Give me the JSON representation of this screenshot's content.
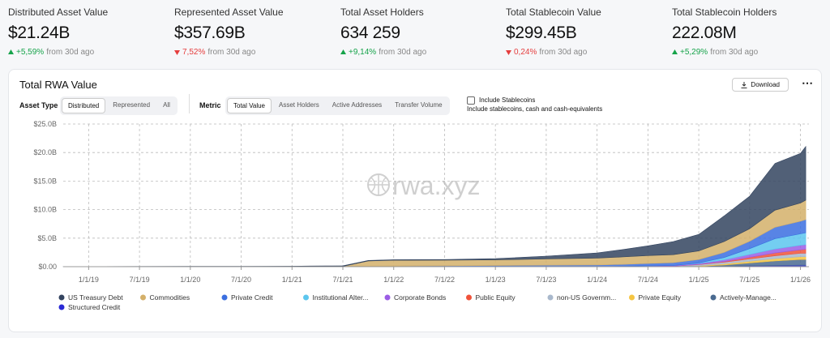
{
  "stats": [
    {
      "label": "Distributed Asset Value",
      "value": "$21.24B",
      "change": "+5,59%",
      "suffix": "from 30d ago"
    },
    {
      "label": "Represented Asset Value",
      "value": "$357.69B",
      "change": "7,52%",
      "suffix": "from 30d ago"
    },
    {
      "label": "Total Asset Holders",
      "value": "634 259",
      "change": "+9,14%",
      "suffix": "from 30d ago"
    },
    {
      "label": "Total Stablecoin Value",
      "value": "$299.45B",
      "change": "0,24%",
      "suffix": "from 30d ago"
    },
    {
      "label": "Total Stablecoin Holders",
      "value": "222.08M",
      "change": "+5,29%",
      "suffix": "from 30d ago"
    }
  ],
  "stat_directions": [
    "up",
    "down",
    "up",
    "down",
    "up"
  ],
  "panel": {
    "title": "Total RWA Value",
    "download": "Download",
    "asset_type_label": "Asset Type",
    "asset_types": [
      "Distributed",
      "Represented",
      "All"
    ],
    "metric_label": "Metric",
    "metrics": [
      "Total Value",
      "Asset Holders",
      "Active Addresses",
      "Transfer Volume"
    ],
    "stablecoins_label": "Include Stablecoins",
    "stablecoins_note": "Include stablecoins, cash and cash-equivalents",
    "watermark": "rwa.xyz"
  },
  "chart_data": {
    "type": "stacked_area",
    "x": [
      "10/1/18",
      "1/1/19",
      "7/1/19",
      "1/1/20",
      "7/1/20",
      "1/1/21",
      "7/1/21",
      "10/1/21",
      "1/1/22",
      "7/1/22",
      "1/1/23",
      "7/1/23",
      "1/1/24",
      "4/1/24",
      "7/1/24",
      "10/1/24",
      "1/1/25",
      "4/1/25",
      "7/1/25",
      "10/1/25",
      "1/1/26",
      "1/20/26"
    ],
    "xlim": [
      "10/1/18",
      "2/1/26"
    ],
    "xticks": [
      "1/1/19",
      "7/1/19",
      "1/1/20",
      "7/1/20",
      "1/1/21",
      "7/1/21",
      "1/1/22",
      "7/1/22",
      "1/1/23",
      "7/1/23",
      "1/1/24",
      "7/1/24",
      "1/1/25",
      "7/1/25",
      "1/1/26"
    ],
    "ylim": [
      0,
      25
    ],
    "yticks": [
      {
        "value": 0,
        "label": "$0.00"
      },
      {
        "value": 5,
        "label": "$5.0B"
      },
      {
        "value": 10,
        "label": "$10.0B"
      },
      {
        "value": 15,
        "label": "$15.0B"
      },
      {
        "value": 20,
        "label": "$20.0B"
      },
      {
        "value": 25,
        "label": "$25.0B"
      }
    ],
    "grid": true,
    "series": [
      {
        "name": "US Treasury Debt",
        "color": "#33445f",
        "values": [
          0.02,
          0.03,
          0.04,
          0.05,
          0.06,
          0.08,
          0.1,
          0.1,
          0.1,
          0.1,
          0.2,
          0.5,
          0.9,
          1.3,
          1.7,
          2.3,
          2.9,
          4.5,
          5.7,
          8.2,
          8.7,
          9.4
        ]
      },
      {
        "name": "Commodities",
        "color": "#d4b06a",
        "values": [
          0,
          0,
          0,
          0,
          0,
          0,
          0,
          0.9,
          1.0,
          1.0,
          1.0,
          1.1,
          1.2,
          1.3,
          1.4,
          1.4,
          1.5,
          1.9,
          2.2,
          3.0,
          3.2,
          3.4
        ]
      },
      {
        "name": "Private Credit",
        "color": "#3b6fe0",
        "values": [
          0,
          0,
          0,
          0,
          0,
          0.01,
          0.05,
          0.1,
          0.12,
          0.15,
          0.2,
          0.25,
          0.3,
          0.35,
          0.4,
          0.5,
          0.6,
          0.9,
          1.3,
          2.0,
          2.2,
          2.3
        ]
      },
      {
        "name": "Institutional Alter...",
        "color": "#5cc6ee",
        "values": [
          0,
          0,
          0,
          0,
          0,
          0,
          0,
          0,
          0,
          0,
          0,
          0,
          0,
          0,
          0,
          0,
          0.1,
          0.4,
          1.0,
          1.8,
          2.0,
          2.1
        ]
      },
      {
        "name": "Corporate Bonds",
        "color": "#9b5de5",
        "values": [
          0,
          0,
          0,
          0,
          0,
          0,
          0,
          0,
          0,
          0,
          0,
          0,
          0,
          0.05,
          0.1,
          0.1,
          0.15,
          0.3,
          0.5,
          0.7,
          0.8,
          0.8
        ]
      },
      {
        "name": "Public Equity",
        "color": "#f0523a",
        "values": [
          0,
          0,
          0,
          0,
          0,
          0,
          0,
          0,
          0,
          0,
          0,
          0,
          0,
          0,
          0,
          0,
          0.05,
          0.1,
          0.3,
          0.5,
          0.6,
          0.7
        ]
      },
      {
        "name": "non-US Governm...",
        "color": "#a9b8cc",
        "values": [
          0,
          0,
          0,
          0,
          0,
          0,
          0,
          0,
          0,
          0,
          0,
          0,
          0,
          0,
          0.05,
          0.1,
          0.2,
          0.3,
          0.4,
          0.5,
          0.6,
          0.6
        ]
      },
      {
        "name": "Private Equity",
        "color": "#f5c542",
        "values": [
          0,
          0,
          0,
          0,
          0,
          0,
          0,
          0,
          0,
          0,
          0,
          0,
          0,
          0,
          0,
          0,
          0.1,
          0.2,
          0.3,
          0.4,
          0.5,
          0.5
        ]
      },
      {
        "name": "Actively-Manage...",
        "color": "#4a6a90",
        "values": [
          0,
          0,
          0,
          0,
          0,
          0,
          0,
          0,
          0,
          0,
          0,
          0,
          0,
          0,
          0,
          0,
          0,
          0.2,
          0.5,
          0.8,
          1.0,
          1.0
        ]
      },
      {
        "name": "Structured Credit",
        "color": "#2a2ad6",
        "values": [
          0,
          0,
          0,
          0,
          0,
          0,
          0,
          0,
          0,
          0,
          0,
          0,
          0,
          0,
          0,
          0,
          0.05,
          0.1,
          0.15,
          0.2,
          0.25,
          0.25
        ]
      }
    ]
  }
}
